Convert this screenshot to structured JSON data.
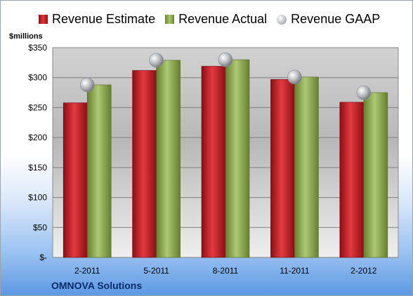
{
  "chart_data": {
    "type": "bar",
    "unit_label": "$millions",
    "company": "OMNOVA Solutions",
    "categories": [
      "2-2011",
      "5-2011",
      "8-2011",
      "11-2011",
      "2-2012"
    ],
    "series": [
      {
        "name": "Revenue Estimate",
        "values": [
          258,
          312,
          319,
          297,
          259
        ],
        "color": "#c8232a"
      },
      {
        "name": "Revenue Actual",
        "values": [
          288,
          329,
          330,
          301,
          275
        ],
        "color": "#8cac55"
      },
      {
        "name": "Revenue GAAP",
        "values": [
          288,
          329,
          330,
          301,
          275
        ],
        "marker": "circle",
        "color": "#b9bcc0"
      }
    ],
    "y_ticks": [
      {
        "value": 0,
        "label": "$-"
      },
      {
        "value": 50,
        "label": "$50"
      },
      {
        "value": 100,
        "label": "$100"
      },
      {
        "value": 150,
        "label": "$150"
      },
      {
        "value": 200,
        "label": "$200"
      },
      {
        "value": 250,
        "label": "$250"
      },
      {
        "value": 300,
        "label": "$300"
      },
      {
        "value": 350,
        "label": "$350"
      }
    ],
    "ylim": [
      0,
      350
    ],
    "grid": true,
    "legend_position": "top"
  }
}
